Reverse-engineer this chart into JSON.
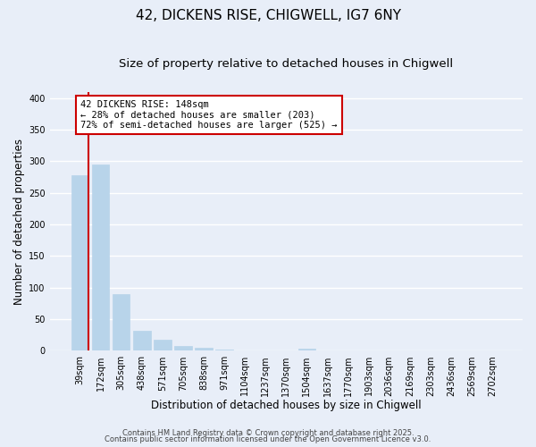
{
  "title": "42, DICKENS RISE, CHIGWELL, IG7 6NY",
  "subtitle": "Size of property relative to detached houses in Chigwell",
  "xlabel": "Distribution of detached houses by size in Chigwell",
  "ylabel": "Number of detached properties",
  "bar_color": "#b8d4ea",
  "highlight_color": "#cc0000",
  "background_color": "#e8eef8",
  "grid_color": "#ffffff",
  "categories": [
    "39sqm",
    "172sqm",
    "305sqm",
    "438sqm",
    "571sqm",
    "705sqm",
    "838sqm",
    "971sqm",
    "1104sqm",
    "1237sqm",
    "1370sqm",
    "1504sqm",
    "1637sqm",
    "1770sqm",
    "1903sqm",
    "2036sqm",
    "2169sqm",
    "2303sqm",
    "2436sqm",
    "2569sqm",
    "2702sqm"
  ],
  "values": [
    278,
    295,
    90,
    32,
    18,
    8,
    5,
    2,
    1,
    0,
    0,
    3,
    0,
    0,
    0,
    0,
    0,
    0,
    0,
    0,
    1
  ],
  "red_line_after_bar": 0,
  "annotation_lines": [
    "42 DICKENS RISE: 148sqm",
    "← 28% of detached houses are smaller (203)",
    "72% of semi-detached houses are larger (525) →"
  ],
  "ylim": [
    0,
    410
  ],
  "yticks": [
    0,
    50,
    100,
    150,
    200,
    250,
    300,
    350,
    400
  ],
  "footer_line1": "Contains HM Land Registry data © Crown copyright and database right 2025.",
  "footer_line2": "Contains public sector information licensed under the Open Government Licence v3.0.",
  "title_fontsize": 11,
  "subtitle_fontsize": 9.5,
  "label_fontsize": 8.5,
  "tick_fontsize": 7,
  "footer_fontsize": 6,
  "ann_fontsize": 7.5
}
